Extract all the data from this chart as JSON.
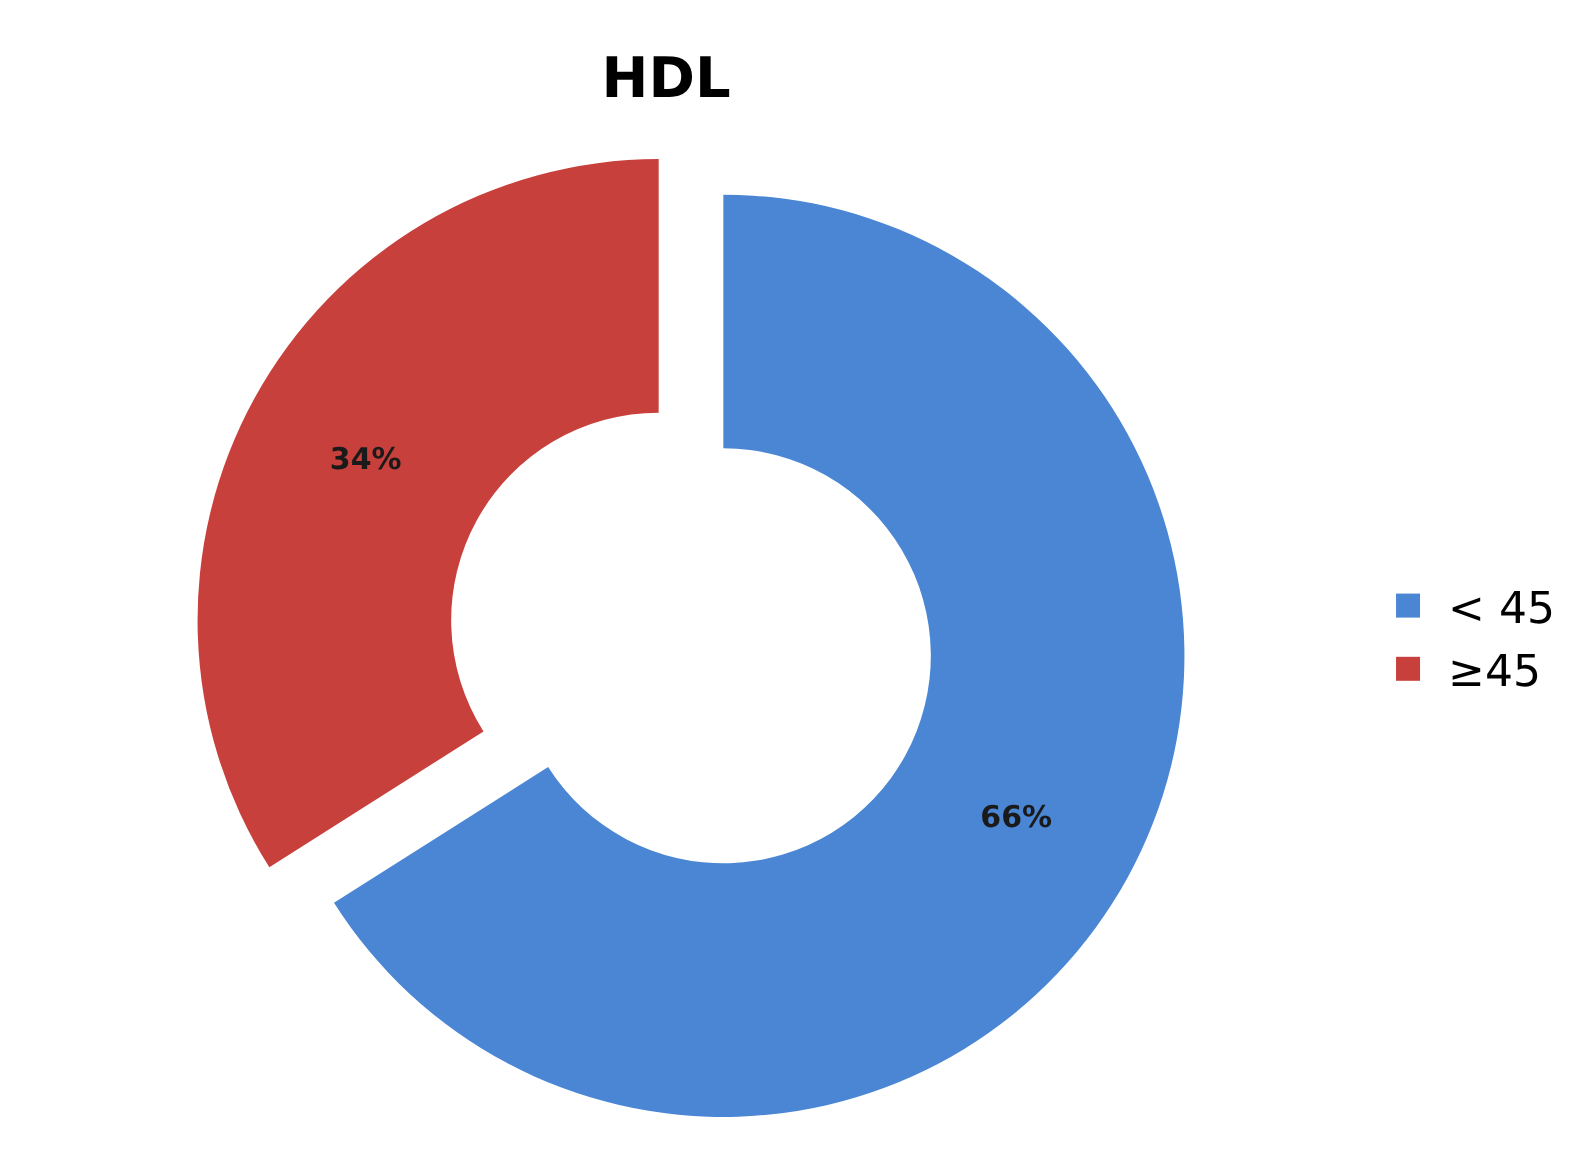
{
  "chart_data": {
    "type": "donut",
    "title": "HDL",
    "categories": [
      "< 45",
      "≥45"
    ],
    "values": [
      66,
      34
    ],
    "colors": [
      "#4a86d4",
      "#c8403c"
    ],
    "value_labels": [
      "66%",
      "34%"
    ],
    "legend": "right"
  }
}
